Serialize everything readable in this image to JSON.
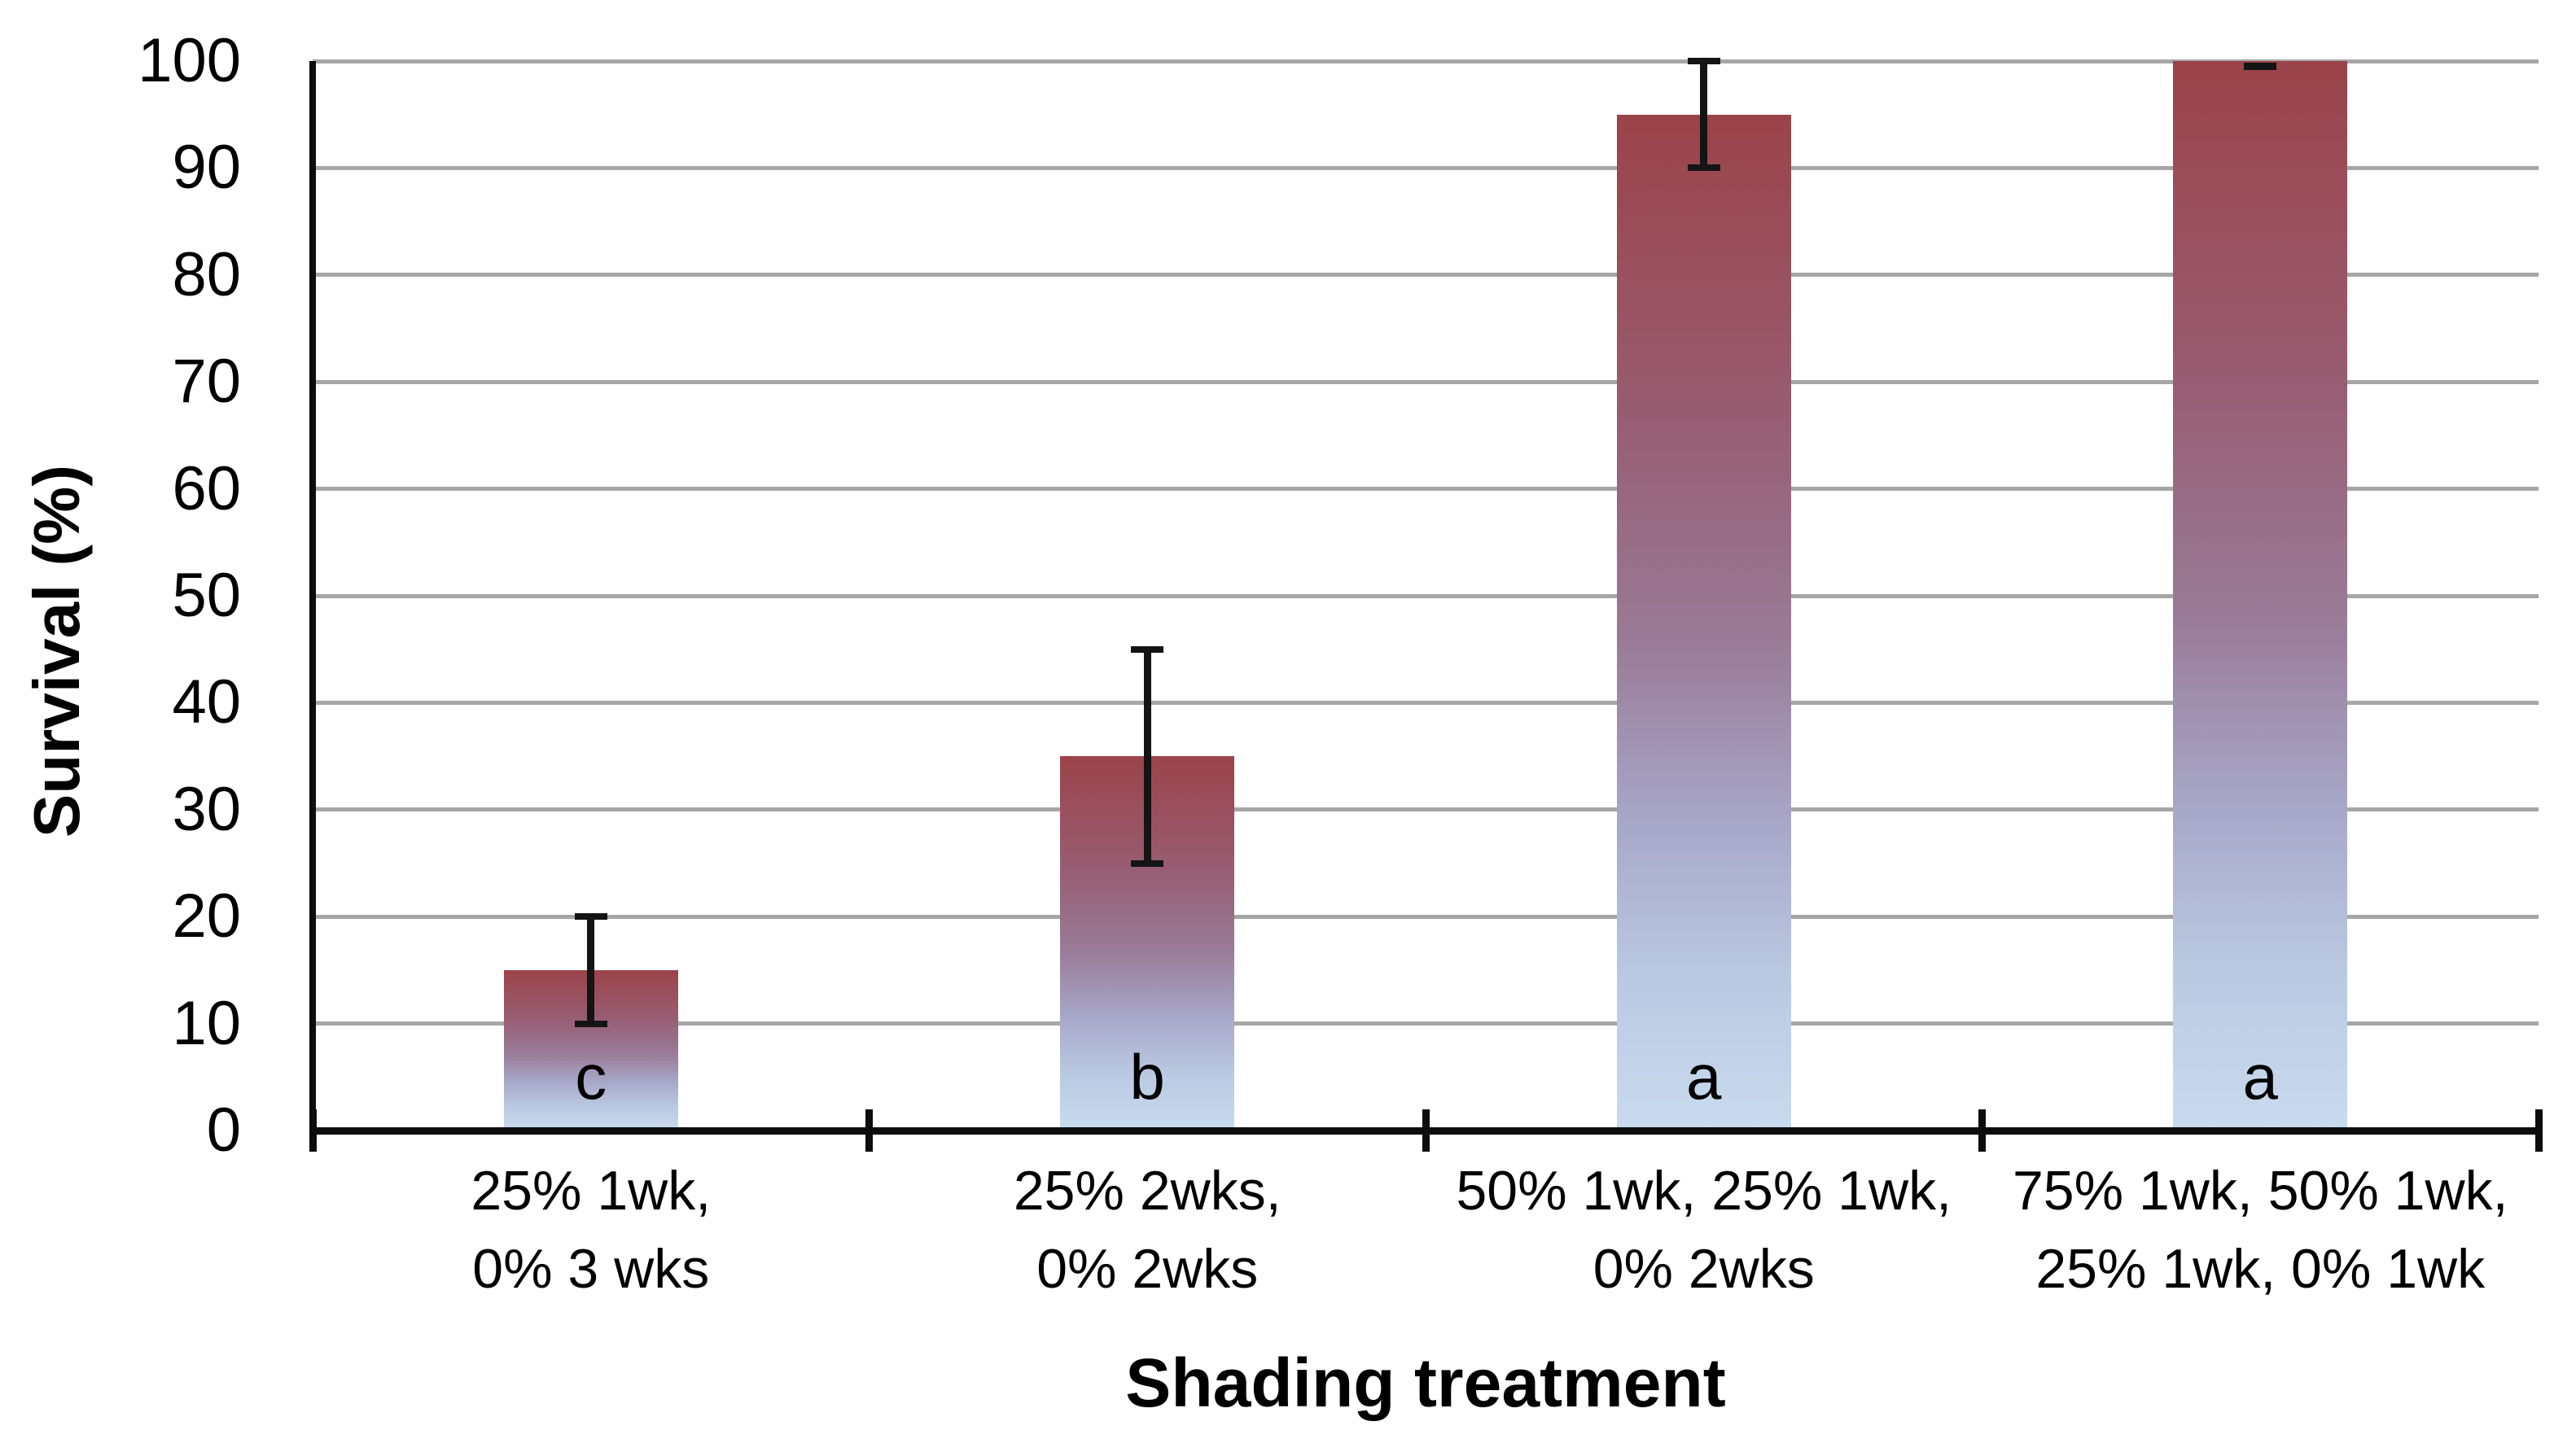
{
  "chart_data": {
    "type": "bar",
    "title": "",
    "xlabel": "Shading treatment",
    "ylabel": "Survival (%)",
    "ylim": [
      0,
      100
    ],
    "ytick_step": 10,
    "yticks": [
      0,
      10,
      20,
      30,
      40,
      50,
      60,
      70,
      80,
      90,
      100
    ],
    "grid": true,
    "legend": false,
    "categories": [
      {
        "label_lines": [
          "25% 1wk,",
          "0% 3 wks"
        ],
        "value": 15,
        "err_low": 10,
        "err_high": 20,
        "sig_letter": "c"
      },
      {
        "label_lines": [
          "25% 2wks,",
          "0% 2wks"
        ],
        "value": 35,
        "err_low": 25,
        "err_high": 45,
        "sig_letter": "b"
      },
      {
        "label_lines": [
          "50% 1wk, 25% 1wk,",
          "0% 2wks"
        ],
        "value": 95,
        "err_low": 90,
        "err_high": 100,
        "sig_letter": "a"
      },
      {
        "label_lines": [
          "75% 1wk, 50% 1wk,",
          "25% 1wk, 0% 1wk"
        ],
        "value": 100,
        "err_low": 100,
        "err_high": 100,
        "sig_letter": "a"
      }
    ],
    "colors": {
      "bar_gradient": [
        "#9b434a",
        "#985d72",
        "#997b97",
        "#a8a8c9",
        "#bac9e2",
        "#c9dbee"
      ],
      "bar_gradient_stops": [
        0,
        30,
        52,
        70,
        85,
        100
      ],
      "gridline": "#a6a6a6",
      "axis": "#0d0d0d",
      "error_bar": "#141414",
      "text": "#000000",
      "background": "#ffffff"
    }
  }
}
